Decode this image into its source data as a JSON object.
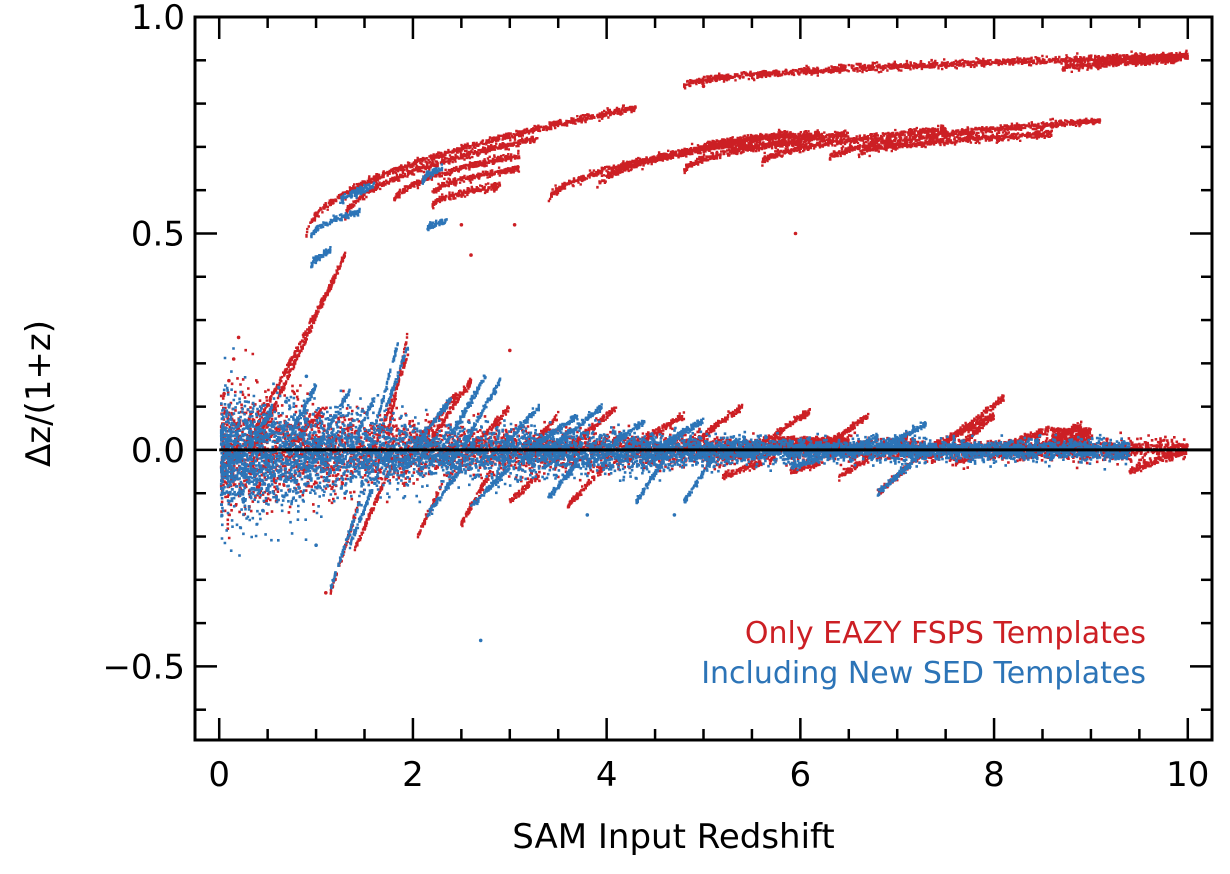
{
  "chart_data": {
    "type": "scatter",
    "title": "",
    "xlabel": "SAM Input Redshift",
    "ylabel": "Δz/(1+z)",
    "xlim": [
      -0.25,
      10.25
    ],
    "ylim": [
      -0.67,
      1.0
    ],
    "xticks": [
      0,
      2,
      4,
      6,
      8,
      10
    ],
    "xtick_labels": [
      "0",
      "2",
      "4",
      "6",
      "8",
      "10"
    ],
    "yticks": [
      -0.5,
      0.0,
      0.5,
      1.0
    ],
    "ytick_labels": [
      "−0.5",
      "0.0",
      "0.5",
      "1.0"
    ],
    "reference_line": {
      "y": 0.0,
      "color": "#000000"
    },
    "legend": {
      "position": "bottom-right"
    },
    "colors": {
      "red": "#cc1f24",
      "blue": "#2c74b7"
    },
    "series": [
      {
        "name": "Only EAZY FSPS Templates",
        "color": "#cc1f24",
        "core": {
          "x_range": [
            0.02,
            10.0
          ],
          "sigma_base": 0.012,
          "sigma_near": 0.06,
          "near_x_below": 2.0,
          "bump_regions": [
            {
              "x_range": [
                5.7,
                6.5
              ],
              "y_range": [
                0.0,
                0.03
              ]
            },
            {
              "x_range": [
                8.6,
                9.0
              ],
              "y_range": [
                0.0,
                0.05
              ]
            }
          ]
        },
        "streaks": [
          {
            "x": [
              0.9,
              4.3
            ],
            "y": [
              0.49,
              0.79
            ]
          },
          {
            "x": [
              1.3,
              3.3
            ],
            "y": [
              0.53,
              0.72
            ]
          },
          {
            "x": [
              1.8,
              3.1
            ],
            "y": [
              0.57,
              0.68
            ]
          },
          {
            "x": [
              2.2,
              3.1
            ],
            "y": [
              0.59,
              0.65
            ]
          },
          {
            "x": [
              2.2,
              2.9
            ],
            "y": [
              0.56,
              0.61
            ]
          },
          {
            "x": [
              3.4,
              5.4
            ],
            "y": [
              0.57,
              0.71
            ]
          },
          {
            "x": [
              3.9,
              5.9
            ],
            "y": [
              0.6,
              0.73
            ]
          },
          {
            "x": [
              4.8,
              6.5
            ],
            "y": [
              0.64,
              0.73
            ]
          },
          {
            "x": [
              5.0,
              6.2
            ],
            "y": [
              0.7,
              0.73
            ]
          },
          {
            "x": [
              5.3,
              6.0
            ],
            "y": [
              0.69,
              0.71
            ]
          },
          {
            "x": [
              5.6,
              7.5
            ],
            "y": [
              0.66,
              0.74
            ]
          },
          {
            "x": [
              6.3,
              9.1
            ],
            "y": [
              0.67,
              0.76
            ]
          },
          {
            "x": [
              6.6,
              8.6
            ],
            "y": [
              0.68,
              0.73
            ]
          },
          {
            "x": [
              4.8,
              10.0
            ],
            "y": [
              0.84,
              0.91
            ]
          },
          {
            "x": [
              9.0,
              10.0
            ],
            "y": [
              0.89,
              0.91
            ]
          },
          {
            "x": [
              8.7,
              9.9
            ],
            "y": [
              0.88,
              0.9
            ]
          },
          {
            "x": [
              0.3,
              1.2
            ],
            "y": [
              0.02,
              0.4
            ]
          },
          {
            "x": [
              0.4,
              1.3
            ],
            "y": [
              0.02,
              0.45
            ]
          },
          {
            "x": [
              0.35,
              0.5
            ],
            "y": [
              0.0,
              0.08
            ]
          },
          {
            "x": [
              0.7,
              1.05
            ],
            "y": [
              0.0,
              0.09
            ]
          },
          {
            "x": [
              1.6,
              1.95
            ],
            "y": [
              0.0,
              0.22
            ]
          },
          {
            "x": [
              1.75,
              1.95
            ],
            "y": [
              0.05,
              0.27
            ]
          },
          {
            "x": [
              2.0,
              2.45
            ],
            "y": [
              0.0,
              0.13
            ]
          },
          {
            "x": [
              2.1,
              2.6
            ],
            "y": [
              0.0,
              0.16
            ]
          },
          {
            "x": [
              2.6,
              3.0
            ],
            "y": [
              0.0,
              0.1
            ]
          },
          {
            "x": [
              3.2,
              3.5
            ],
            "y": [
              0.0,
              0.08
            ]
          },
          {
            "x": [
              3.6,
              4.1
            ],
            "y": [
              0.0,
              0.1
            ]
          },
          {
            "x": [
              4.2,
              4.8
            ],
            "y": [
              0.0,
              0.08
            ]
          },
          {
            "x": [
              4.8,
              5.4
            ],
            "y": [
              0.0,
              0.1
            ]
          },
          {
            "x": [
              5.5,
              6.1
            ],
            "y": [
              0.0,
              0.09
            ]
          },
          {
            "x": [
              6.2,
              6.7
            ],
            "y": [
              0.0,
              0.08
            ]
          },
          {
            "x": [
              7.3,
              8.0
            ],
            "y": [
              0.0,
              0.08
            ]
          },
          {
            "x": [
              7.4,
              8.1
            ],
            "y": [
              0.0,
              0.12
            ]
          },
          {
            "x": [
              7.0,
              7.1
            ],
            "y": [
              0.0,
              0.03
            ]
          },
          {
            "x": [
              7.6,
              8.0
            ],
            "y": [
              0.0,
              0.08
            ]
          },
          {
            "x": [
              8.0,
              8.6
            ],
            "y": [
              0.0,
              0.05
            ]
          },
          {
            "x": [
              9.4,
              10.0
            ],
            "y": [
              -0.05,
              0.0
            ]
          },
          {
            "x": [
              8.3,
              8.9
            ],
            "y": [
              -0.02,
              0.06
            ]
          },
          {
            "x": [
              7.6,
              7.9
            ],
            "y": [
              -0.03,
              0.0
            ]
          },
          {
            "x": [
              1.45,
              1.15
            ],
            "y": [
              -0.12,
              -0.33
            ]
          },
          {
            "x": [
              1.75,
              1.4
            ],
            "y": [
              -0.05,
              -0.23
            ]
          },
          {
            "x": [
              2.3,
              2.05
            ],
            "y": [
              -0.08,
              -0.2
            ]
          },
          {
            "x": [
              2.8,
              2.5
            ],
            "y": [
              -0.05,
              -0.17
            ]
          },
          {
            "x": [
              3.3,
              3.0
            ],
            "y": [
              -0.06,
              -0.12
            ]
          },
          {
            "x": [
              4.0,
              3.6
            ],
            "y": [
              -0.03,
              -0.13
            ]
          },
          {
            "x": [
              5.6,
              5.2
            ],
            "y": [
              -0.03,
              -0.06
            ]
          },
          {
            "x": [
              6.2,
              5.9
            ],
            "y": [
              -0.03,
              -0.05
            ]
          },
          {
            "x": [
              6.7,
              6.4
            ],
            "y": [
              -0.02,
              -0.06
            ]
          },
          {
            "x": [
              7.3,
              6.8
            ],
            "y": [
              0.0,
              -0.1
            ]
          }
        ],
        "outliers": [
          {
            "x": 0.05,
            "y": 0.13
          },
          {
            "x": 0.1,
            "y": 0.16
          },
          {
            "x": 0.15,
            "y": 0.21
          },
          {
            "x": 0.2,
            "y": 0.26
          },
          {
            "x": 1.1,
            "y": -0.33
          },
          {
            "x": 2.5,
            "y": 0.52
          },
          {
            "x": 3.0,
            "y": 0.23
          },
          {
            "x": 3.05,
            "y": 0.52
          },
          {
            "x": 5.95,
            "y": 0.5
          },
          {
            "x": 2.6,
            "y": 0.45
          },
          {
            "x": 5.0,
            "y": 0.84
          }
        ]
      },
      {
        "name": "Including New SED Templates",
        "color": "#2c74b7",
        "core": {
          "x_range": [
            0.02,
            9.4
          ],
          "sigma_base": 0.012,
          "sigma_near": 0.055,
          "near_x_below": 2.0
        },
        "streaks": [
          {
            "x": [
              0.95,
              1.45
            ],
            "y": [
              0.49,
              0.55
            ]
          },
          {
            "x": [
              1.25,
              1.5
            ],
            "y": [
              0.57,
              0.6
            ]
          },
          {
            "x": [
              1.4,
              1.6
            ],
            "y": [
              0.59,
              0.61
            ]
          },
          {
            "x": [
              2.1,
              2.3
            ],
            "y": [
              0.62,
              0.65
            ]
          },
          {
            "x": [
              2.15,
              2.35
            ],
            "y": [
              0.51,
              0.53
            ]
          },
          {
            "x": [
              0.95,
              1.15
            ],
            "y": [
              0.42,
              0.46
            ]
          },
          {
            "x": [
              0.3,
              0.55
            ],
            "y": [
              0.0,
              0.1
            ]
          },
          {
            "x": [
              0.65,
              1.0
            ],
            "y": [
              0.0,
              0.15
            ]
          },
          {
            "x": [
              1.0,
              1.35
            ],
            "y": [
              0.0,
              0.14
            ]
          },
          {
            "x": [
              1.35,
              1.6
            ],
            "y": [
              0.0,
              0.12
            ]
          },
          {
            "x": [
              1.55,
              1.85
            ],
            "y": [
              0.0,
              0.25
            ]
          },
          {
            "x": [
              1.7,
              1.95
            ],
            "y": [
              0.08,
              0.24
            ]
          },
          {
            "x": [
              2.0,
              2.4
            ],
            "y": [
              0.0,
              0.12
            ]
          },
          {
            "x": [
              2.3,
              2.75
            ],
            "y": [
              0.0,
              0.17
            ]
          },
          {
            "x": [
              2.5,
              2.9
            ],
            "y": [
              0.0,
              0.16
            ]
          },
          {
            "x": [
              2.9,
              3.3
            ],
            "y": [
              0.0,
              0.1
            ]
          },
          {
            "x": [
              3.2,
              3.7
            ],
            "y": [
              0.0,
              0.08
            ]
          },
          {
            "x": [
              3.4,
              3.95
            ],
            "y": [
              0.0,
              0.1
            ]
          },
          {
            "x": [
              4.0,
              4.4
            ],
            "y": [
              0.0,
              0.07
            ]
          },
          {
            "x": [
              4.5,
              5.0
            ],
            "y": [
              0.0,
              0.07
            ]
          },
          {
            "x": [
              6.8,
              7.3
            ],
            "y": [
              0.0,
              0.06
            ]
          },
          {
            "x": [
              6.5,
              6.8
            ],
            "y": [
              0.0,
              0.03
            ]
          },
          {
            "x": [
              1.45,
              1.15
            ],
            "y": [
              -0.12,
              -0.32
            ]
          },
          {
            "x": [
              1.65,
              1.35
            ],
            "y": [
              -0.05,
              -0.22
            ]
          },
          {
            "x": [
              2.5,
              2.15
            ],
            "y": [
              -0.04,
              -0.15
            ]
          },
          {
            "x": [
              3.0,
              2.6
            ],
            "y": [
              -0.04,
              -0.13
            ]
          },
          {
            "x": [
              3.7,
              3.4
            ],
            "y": [
              -0.03,
              -0.11
            ]
          },
          {
            "x": [
              4.6,
              4.3
            ],
            "y": [
              -0.02,
              -0.12
            ]
          },
          {
            "x": [
              5.1,
              4.8
            ],
            "y": [
              -0.02,
              -0.12
            ]
          },
          {
            "x": [
              7.3,
              6.8
            ],
            "y": [
              0.0,
              -0.1
            ]
          },
          {
            "x": [
              6.2,
              5.9
            ],
            "y": [
              -0.02,
              -0.04
            ]
          }
        ],
        "outliers": [
          {
            "x": 0.2,
            "y": -0.1
          },
          {
            "x": 0.25,
            "y": -0.12
          },
          {
            "x": 0.45,
            "y": -0.14
          },
          {
            "x": 1.3,
            "y": -0.1
          },
          {
            "x": 2.7,
            "y": -0.44
          },
          {
            "x": 1.0,
            "y": -0.22
          },
          {
            "x": 0.9,
            "y": 0.17
          },
          {
            "x": 3.8,
            "y": -0.15
          },
          {
            "x": 4.7,
            "y": -0.15
          }
        ]
      }
    ]
  }
}
